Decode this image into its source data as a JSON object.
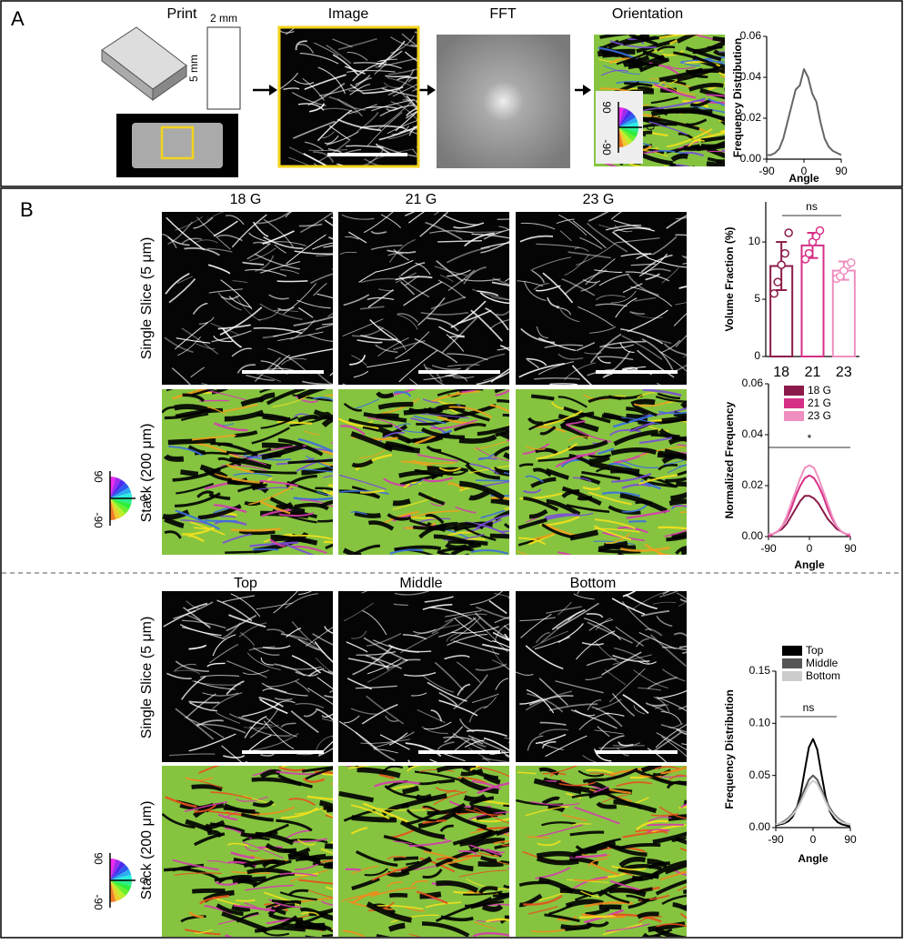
{
  "panel_a": {
    "label": "A",
    "steps": [
      "Print",
      "Image",
      "FFT",
      "Orientation"
    ],
    "dims": [
      "2 mm",
      "5 mm"
    ],
    "wheel": [
      "90",
      "0",
      "-90"
    ]
  },
  "panel_b": {
    "label": "B",
    "gauges": [
      "18 G",
      "21 G",
      "23 G"
    ],
    "layers": [
      "Top",
      "Middle",
      "Bottom"
    ],
    "rows": [
      "Single Slice (5 μm)",
      "Stack (200 μm)"
    ],
    "wheel": [
      "90",
      "0",
      "-90"
    ]
  },
  "chart_data": [
    {
      "type": "line",
      "ylabel": "Frequency Distribution",
      "xlabel": "Angle",
      "x": [
        -90,
        -80,
        -70,
        -60,
        -50,
        -40,
        -30,
        -20,
        -10,
        0,
        10,
        20,
        30,
        40,
        50,
        60,
        70,
        80,
        90
      ],
      "series": [
        {
          "name": null,
          "color": "#666666",
          "values": [
            0.002,
            0.002,
            0.003,
            0.005,
            0.01,
            0.018,
            0.026,
            0.034,
            0.036,
            0.044,
            0.04,
            0.032,
            0.028,
            0.018,
            0.01,
            0.006,
            0.004,
            0.003,
            0.002
          ]
        }
      ],
      "xlim": [
        -90,
        90
      ],
      "xticks": [
        -90,
        0,
        90
      ],
      "ylim": [
        0,
        0.06
      ],
      "yticks": [
        {
          "value": 0,
          "label": "0.00"
        },
        {
          "value": 0.02,
          "label": "0.02"
        },
        {
          "value": 0.04,
          "label": "0.04"
        },
        {
          "value": 0.06,
          "label": "0.06"
        }
      ]
    },
    {
      "type": "bar",
      "ylabel": "Volume Fraction (%)",
      "categories": [
        "18",
        "21",
        "23"
      ],
      "values": [
        7.9,
        9.7,
        7.5
      ],
      "errors": [
        2.1,
        1.1,
        0.8
      ],
      "points": [
        [
          5.5,
          6.5,
          8,
          9,
          10.8
        ],
        [
          8.5,
          9,
          10,
          10.5,
          11
        ],
        [
          6.8,
          7,
          7.5,
          8,
          8.2
        ]
      ],
      "colors": [
        "#8b1a4a",
        "#d62f86",
        "#ef8fbf"
      ],
      "ylim": [
        0,
        13.5
      ],
      "yticks": [
        0,
        5,
        10
      ],
      "annotation": "ns"
    },
    {
      "type": "line",
      "ylabel": "Normalized  Frequency",
      "xlabel": "Angle",
      "x": [
        -90,
        -80,
        -70,
        -60,
        -50,
        -40,
        -30,
        -20,
        -10,
        0,
        10,
        20,
        30,
        40,
        50,
        60,
        70,
        80,
        90
      ],
      "series": [
        {
          "name": "18 G",
          "color": "#8b1a4a",
          "values": [
            0.0,
            0.001,
            0.002,
            0.003,
            0.005,
            0.008,
            0.011,
            0.014,
            0.016,
            0.016,
            0.015,
            0.013,
            0.01,
            0.007,
            0.005,
            0.003,
            0.002,
            0.001,
            0.0
          ]
        },
        {
          "name": "21 G",
          "color": "#d62f86",
          "values": [
            0.0,
            0.001,
            0.002,
            0.004,
            0.007,
            0.011,
            0.016,
            0.02,
            0.023,
            0.024,
            0.023,
            0.02,
            0.016,
            0.011,
            0.007,
            0.004,
            0.002,
            0.001,
            0.0
          ]
        },
        {
          "name": "23 G",
          "color": "#ef8fbf",
          "values": [
            0.001,
            0.001,
            0.002,
            0.004,
            0.008,
            0.013,
            0.018,
            0.023,
            0.027,
            0.028,
            0.027,
            0.023,
            0.018,
            0.013,
            0.008,
            0.004,
            0.002,
            0.001,
            0.001
          ]
        }
      ],
      "xlim": [
        -90,
        90
      ],
      "xticks": [
        -90,
        0,
        90
      ],
      "ylim": [
        0,
        0.06
      ],
      "yticks": [
        {
          "value": 0,
          "label": "0.00"
        },
        {
          "value": 0.02,
          "label": "0.02"
        },
        {
          "value": 0.04,
          "label": "0.04"
        },
        {
          "value": 0.06,
          "label": "0.06"
        }
      ],
      "annotation": "*"
    },
    {
      "type": "line",
      "ylabel": "Frequency Distribution",
      "xlabel": "Angle",
      "x": [
        -90,
        -80,
        -70,
        -60,
        -50,
        -40,
        -30,
        -20,
        -10,
        0,
        10,
        20,
        30,
        40,
        50,
        60,
        70,
        80,
        90
      ],
      "series": [
        {
          "name": "Top",
          "color": "#000000",
          "values": [
            0.002,
            0.003,
            0.004,
            0.006,
            0.01,
            0.018,
            0.032,
            0.055,
            0.077,
            0.085,
            0.075,
            0.052,
            0.03,
            0.016,
            0.009,
            0.005,
            0.003,
            0.002,
            0.001
          ]
        },
        {
          "name": "Middle",
          "color": "#555555",
          "values": [
            0.003,
            0.004,
            0.006,
            0.009,
            0.013,
            0.019,
            0.027,
            0.037,
            0.046,
            0.05,
            0.046,
            0.037,
            0.027,
            0.019,
            0.013,
            0.009,
            0.006,
            0.004,
            0.003
          ]
        },
        {
          "name": "Bottom",
          "color": "#cccccc",
          "values": [
            0.003,
            0.004,
            0.005,
            0.008,
            0.012,
            0.017,
            0.024,
            0.033,
            0.041,
            0.045,
            0.042,
            0.034,
            0.025,
            0.017,
            0.012,
            0.008,
            0.005,
            0.004,
            0.003
          ]
        }
      ],
      "xlim": [
        -90,
        90
      ],
      "xticks": [
        -90,
        0,
        90
      ],
      "ylim": [
        0,
        0.15
      ],
      "yticks": [
        {
          "value": 0,
          "label": "0.00"
        },
        {
          "value": 0.05,
          "label": "0.05"
        },
        {
          "value": 0.1,
          "label": "0.10"
        },
        {
          "value": 0.15,
          "label": "0.15"
        }
      ],
      "annotation": "ns"
    }
  ]
}
